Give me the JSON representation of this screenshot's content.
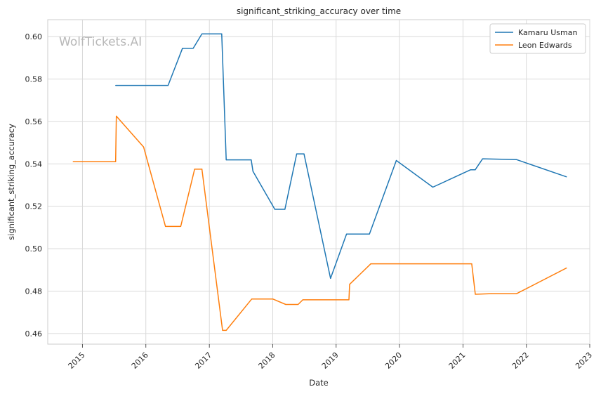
{
  "watermark": "WolfTickets.AI",
  "chart_data": {
    "type": "line",
    "title": "significant_striking_accuracy over time",
    "xlabel": "Date",
    "ylabel": "significant_striking_accuracy",
    "x_ticks": [
      "2015",
      "2016",
      "2017",
      "2018",
      "2019",
      "2020",
      "2021",
      "2022",
      "2023"
    ],
    "y_ticks": [
      "0.46",
      "0.48",
      "0.50",
      "0.52",
      "0.54",
      "0.56",
      "0.58",
      "0.60"
    ],
    "xlim": [
      "2014-06-15",
      "2023-01-01"
    ],
    "ylim": [
      0.455,
      0.608
    ],
    "grid": true,
    "legend_position": "top-right",
    "series": [
      {
        "name": "Kamaru Usman",
        "color": "#1f77b4",
        "points": [
          [
            "2015-07-11",
            0.577
          ],
          [
            "2016-05-08",
            0.577
          ],
          [
            "2016-07-30",
            0.5945
          ],
          [
            "2016-09-30",
            0.5945
          ],
          [
            "2016-11-19",
            0.6013
          ],
          [
            "2017-03-13",
            0.6013
          ],
          [
            "2017-04-08",
            0.5419
          ],
          [
            "2017-08-30",
            0.5419
          ],
          [
            "2017-09-09",
            0.5365
          ],
          [
            "2018-01-13",
            0.5186
          ],
          [
            "2018-03-12",
            0.5186
          ],
          [
            "2018-05-19",
            0.5447
          ],
          [
            "2018-06-30",
            0.5447
          ],
          [
            "2018-11-30",
            0.486
          ],
          [
            "2019-03-02",
            0.5069
          ],
          [
            "2019-07-12",
            0.5069
          ],
          [
            "2019-12-14",
            0.5416
          ],
          [
            "2020-07-11",
            0.529
          ],
          [
            "2021-02-13",
            0.5372
          ],
          [
            "2021-03-12",
            0.5372
          ],
          [
            "2021-04-24",
            0.5424
          ],
          [
            "2021-11-06",
            0.542
          ],
          [
            "2022-08-20",
            0.5339
          ]
        ]
      },
      {
        "name": "Leon Edwards",
        "color": "#ff7f0e",
        "points": [
          [
            "2014-11-08",
            0.541
          ],
          [
            "2015-07-11",
            0.541
          ],
          [
            "2015-07-15",
            0.5625
          ],
          [
            "2015-12-19",
            0.548
          ],
          [
            "2016-04-23",
            0.5105
          ],
          [
            "2016-07-20",
            0.5105
          ],
          [
            "2016-10-08",
            0.5375
          ],
          [
            "2016-11-19",
            0.5375
          ],
          [
            "2017-03-18",
            0.4615
          ],
          [
            "2017-04-08",
            0.4615
          ],
          [
            "2017-09-02",
            0.4763
          ],
          [
            "2018-01-01",
            0.4763
          ],
          [
            "2018-03-17",
            0.4737
          ],
          [
            "2018-05-27",
            0.4737
          ],
          [
            "2018-06-23",
            0.4759
          ],
          [
            "2019-03-16",
            0.4759
          ],
          [
            "2019-03-20",
            0.4832
          ],
          [
            "2019-07-20",
            0.4929
          ],
          [
            "2021-02-20",
            0.4929
          ],
          [
            "2021-03-13",
            0.4785
          ],
          [
            "2021-06-12",
            0.4788
          ],
          [
            "2021-11-06",
            0.4788
          ],
          [
            "2022-08-20",
            0.4909
          ]
        ]
      }
    ]
  }
}
